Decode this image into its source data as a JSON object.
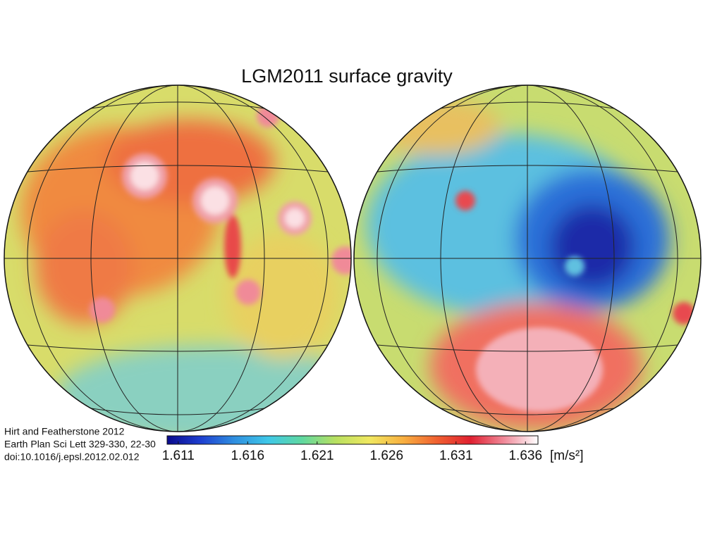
{
  "title": "LGM2011 surface gravity",
  "citation": [
    "Hirt and Featherstone 2012",
    "Earth Plan Sci Lett 329-330, 22-30",
    "doi:10.1016/j.epsl.2012.02.012"
  ],
  "colorbar": {
    "range": [
      1.6102,
      1.6369
    ],
    "ticks": [
      1.611,
      1.616,
      1.621,
      1.626,
      1.631,
      1.636
    ],
    "unit": "[m/s²]",
    "colors": [
      "#0a0a8c",
      "#1e3fd0",
      "#2f8fe0",
      "#3fc8e8",
      "#5fd8a0",
      "#b8e060",
      "#f0e860",
      "#f8b040",
      "#f06030",
      "#e02030",
      "#f08a9a",
      "#ffffff"
    ]
  }
}
